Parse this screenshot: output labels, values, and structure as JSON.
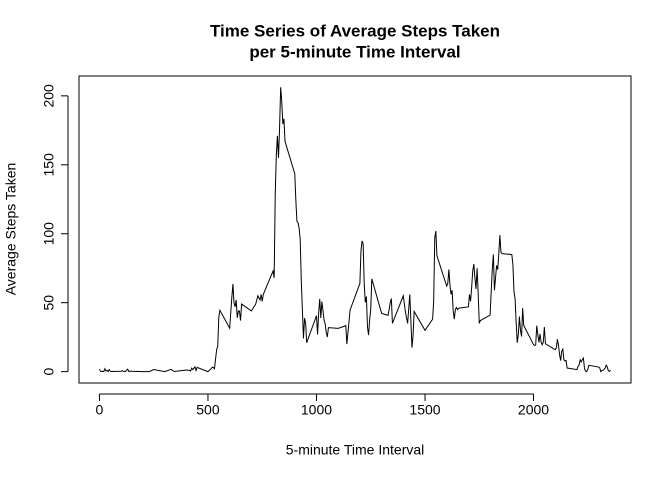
{
  "chart_data": {
    "type": "line",
    "title": [
      "Time Series of Average Steps Taken",
      "per 5-minute Time Interval"
    ],
    "x_label": "5-minute Time Interval",
    "y_label": "Average Steps Taken",
    "color": "#000000",
    "x": [
      0,
      5,
      10,
      15,
      20,
      25,
      30,
      35,
      40,
      45,
      50,
      55,
      100,
      105,
      110,
      115,
      120,
      125,
      130,
      135,
      140,
      145,
      150,
      200,
      230,
      250,
      300,
      330,
      345,
      400,
      415,
      420,
      425,
      430,
      440,
      445,
      450,
      500,
      515,
      520,
      525,
      530,
      540,
      545,
      550,
      555,
      600,
      610,
      615,
      620,
      625,
      630,
      635,
      640,
      645,
      650,
      655,
      700,
      720,
      730,
      740,
      745,
      750,
      755,
      800,
      805,
      810,
      815,
      820,
      825,
      830,
      835,
      840,
      845,
      850,
      855,
      900,
      905,
      910,
      915,
      920,
      925,
      930,
      935,
      940,
      945,
      950,
      955,
      1000,
      1005,
      1010,
      1015,
      1020,
      1025,
      1030,
      1035,
      1040,
      1045,
      1050,
      1055,
      1100,
      1130,
      1135,
      1140,
      1155,
      1200,
      1205,
      1210,
      1215,
      1220,
      1225,
      1230,
      1235,
      1240,
      1245,
      1250,
      1255,
      1300,
      1330,
      1340,
      1345,
      1350,
      1400,
      1410,
      1420,
      1430,
      1440,
      1445,
      1450,
      1500,
      1535,
      1540,
      1545,
      1550,
      1555,
      1600,
      1605,
      1610,
      1615,
      1620,
      1625,
      1630,
      1635,
      1640,
      1645,
      1650,
      1655,
      1700,
      1705,
      1710,
      1715,
      1720,
      1725,
      1730,
      1735,
      1740,
      1745,
      1750,
      1755,
      1800,
      1805,
      1810,
      1815,
      1820,
      1825,
      1830,
      1835,
      1840,
      1845,
      1850,
      1855,
      1900,
      1905,
      1910,
      1915,
      1920,
      1925,
      1930,
      1935,
      1940,
      1945,
      1950,
      1955,
      2000,
      2005,
      2010,
      2015,
      2020,
      2025,
      2030,
      2035,
      2040,
      2045,
      2050,
      2055,
      2100,
      2105,
      2110,
      2115,
      2120,
      2125,
      2130,
      2135,
      2140,
      2145,
      2150,
      2155,
      2200,
      2205,
      2210,
      2215,
      2220,
      2225,
      2230,
      2235,
      2240,
      2245,
      2250,
      2255,
      2300,
      2305,
      2310,
      2315,
      2320,
      2325,
      2330,
      2335,
      2340,
      2345,
      2350,
      2355
    ],
    "values": [
      1.7,
      0.3,
      0.1,
      0.2,
      0.1,
      2.1,
      0.5,
      0.9,
      0,
      1.5,
      0.3,
      0.1,
      0.3,
      0.7,
      0.2,
      0.3,
      0,
      1.1,
      1.8,
      0.2,
      0.2,
      0.4,
      0.3,
      0,
      0,
      1.5,
      0,
      1.6,
      0.1,
      1.2,
      0.9,
      0.4,
      2.5,
      1.5,
      3.5,
      0.8,
      3.1,
      0,
      2.2,
      3.3,
      3,
      2.1,
      16,
      18.3,
      39.5,
      44.5,
      31.5,
      53.8,
      63.5,
      50,
      47,
      52,
      39,
      44,
      44,
      37,
      49,
      44,
      49,
      55,
      52,
      56,
      51,
      56,
      73,
      68,
      129,
      157,
      171,
      155,
      177,
      206.2,
      195.9,
      179.6,
      183.4,
      167,
      143.5,
      124,
      109,
      108,
      104,
      96,
      66,
      45,
      24,
      38.8,
      34.9,
      21,
      40.6,
      26.9,
      42.4,
      52.7,
      38.9,
      50.8,
      44.3,
      37.4,
      34.7,
      28.3,
      25.1,
      31.9,
      31.4,
      33,
      33.4,
      20,
      44.8,
      63.9,
      87.6,
      94.8,
      92.8,
      63.4,
      50.2,
      54.5,
      32.4,
      26.5,
      37.7,
      45.1,
      67.3,
      42.3,
      40.8,
      50,
      53,
      35,
      55,
      43,
      35,
      56,
      17.4,
      26,
      43.6,
      30,
      38,
      51,
      97,
      102,
      84,
      62,
      64,
      74,
      63,
      56,
      59,
      44,
      38,
      45,
      46.5,
      45,
      46,
      47,
      56,
      51,
      61,
      73,
      78,
      68,
      60,
      75,
      57,
      35,
      37,
      41,
      58,
      74,
      85,
      59,
      68,
      77,
      74,
      85,
      99,
      86.6,
      85.6,
      84.9,
      77.8,
      58,
      53,
      36,
      21,
      27,
      40,
      30,
      25.5,
      46,
      33.5,
      19.6,
      19,
      19.3,
      33.3,
      26.8,
      21.2,
      27.3,
      21.3,
      19.5,
      21.3,
      32.3,
      20.2,
      15.9,
      17.2,
      23.5,
      19.2,
      12.5,
      8,
      14.7,
      16.3,
      8.7,
      7.8,
      8.1,
      2.6,
      1.5,
      3.7,
      4.8,
      8.5,
      7.1,
      8.7,
      9.8,
      2.2,
      0.3,
      0.1,
      1.6,
      4.6,
      3.3,
      2.8,
      0,
      0.8,
      1,
      1.6,
      2.6,
      4.7,
      3.3,
      0.6,
      0.2,
      1.1
    ],
    "xlim": [
      -94.2,
      2449.2
    ],
    "xticks": [
      0,
      500,
      1000,
      1500,
      2000
    ],
    "ylim": [
      -8.25,
      214.4
    ],
    "yticks": [
      0,
      50,
      100,
      150,
      200
    ]
  }
}
